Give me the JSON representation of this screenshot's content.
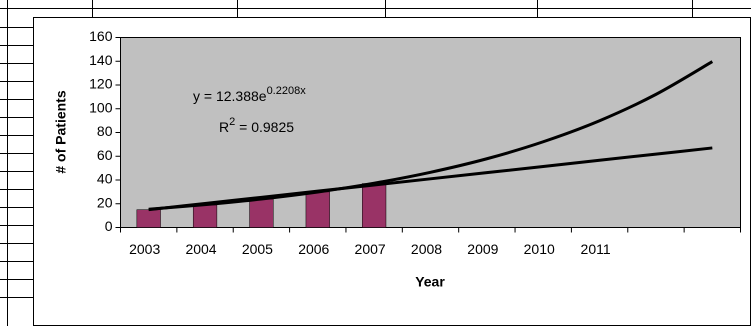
{
  "chart_data": {
    "type": "bar",
    "categories": [
      "2003",
      "2004",
      "2005",
      "2006",
      "2007",
      "2008",
      "2009",
      "2010",
      "2011",
      null,
      null
    ],
    "series": [
      {
        "color": "#993366",
        "values": [
          15,
          19,
          24,
          30,
          37,
          null,
          null,
          null,
          null,
          null,
          null
        ]
      }
    ],
    "trendlines": [
      {
        "type": "exponential",
        "color": "#000000",
        "values": [
          15.4,
          19.3,
          24.0,
          29.9,
          37.3,
          46.5,
          57.9,
          72.2,
          89.9,
          112.1,
          139.7
        ]
      },
      {
        "type": "linear",
        "color": "#000000",
        "values": [
          15,
          20.2,
          25.4,
          30.6,
          35.8,
          41,
          46.2,
          51.4,
          56.6,
          61.8,
          67
        ]
      }
    ],
    "equation": {
      "base": "y = 12.388e",
      "exponent": "0.2208x"
    },
    "r_squared": {
      "base": "R",
      "exponent": "2",
      "rest": " = 0.9825"
    },
    "xlabel": "Year",
    "ylabel": "# of Patients",
    "ylim": [
      0,
      160
    ],
    "yticks": [
      0,
      20,
      40,
      60,
      80,
      100,
      120,
      140,
      160
    ],
    "plot_background": "#c0c0c0"
  }
}
